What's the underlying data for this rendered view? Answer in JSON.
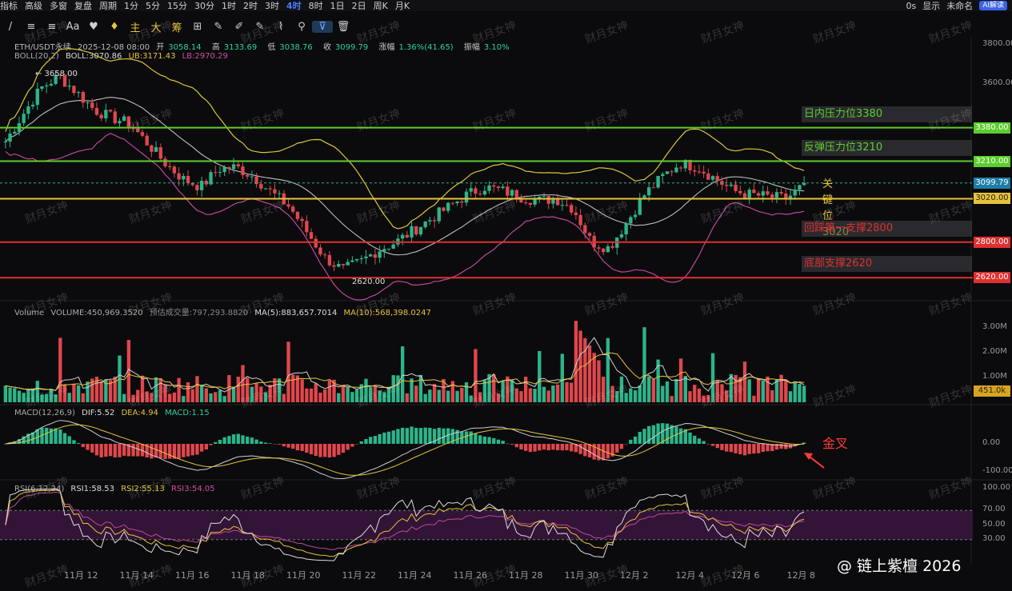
{
  "topbar": {
    "items": [
      "指标",
      "高级",
      "多窗",
      "复盘",
      "周期",
      "1分",
      "5分",
      "15分",
      "30分",
      "1时",
      "2时",
      "3时",
      "4时",
      "8时",
      "1日",
      "2日",
      "周K",
      "月K"
    ],
    "active": "4时",
    "right": [
      "0s",
      "显示",
      "未命名",
      "AI解读"
    ]
  },
  "toolbar": {
    "items": [
      "/",
      "≡",
      "≡",
      "Aa",
      "♥",
      "♦",
      "主",
      "大",
      "筹",
      "⊞",
      "✎",
      "✐",
      "✎",
      "⌇",
      "⚲",
      "⊽",
      "🗑"
    ]
  },
  "header": {
    "symbol": "ETH/USDT永续",
    "date": "2025-12-08 08:00",
    "open_label": "开",
    "open": "3058.14",
    "high_label": "高",
    "high": "3133.69",
    "low_label": "低",
    "low": "3038.76",
    "close_label": "收",
    "close": "3099.79",
    "chg_label": "涨幅",
    "chg": "1.36%(41.65)",
    "amp_label": "振幅",
    "amp": "3.10%"
  },
  "boll": {
    "name": "BOLL(20,2)",
    "mid": "BOLL:3070.86",
    "ub": "UB:3171.43",
    "lb": "LB:2970.29"
  },
  "volume": {
    "name": "Volume",
    "vol": "VOLUME:450,969.3520",
    "est": "预估成交量:797,293.8820",
    "ma5": "MA(5):883,657.7014",
    "ma10": "MA(10):568,398.0247"
  },
  "macd": {
    "name": "MACD(12,26,9)",
    "dif": "DIF:5.52",
    "dea": "DEA:4.94",
    "macd": "MACD:1.15"
  },
  "rsi": {
    "name": "RSI(6,12,24)",
    "rsi1": "RSI1:58.53",
    "rsi2": "RSI2:55.13",
    "rsi3": "RSI3:54.05"
  },
  "levels": [
    {
      "label": "日内压力位3380",
      "price": 3380,
      "tag": "3380.00",
      "color": "#5ccd2e"
    },
    {
      "label": "反弹压力位3210",
      "price": 3210,
      "tag": "3210.00",
      "color": "#5ccd2e"
    },
    {
      "label": "关键位3020",
      "price": 3020,
      "tag": "3020.00",
      "color": "#e8c23a"
    },
    {
      "label": "回踩第一支撑2800",
      "price": 2800,
      "tag": "2800.00",
      "color": "#e03030"
    },
    {
      "label": "底部支撑2620",
      "price": 2620,
      "tag": "2620.00",
      "color": "#e03030"
    }
  ],
  "current_price": "3099.79",
  "price_axis": [
    "3800.00",
    "3600.00",
    "3380.00",
    "3210.00",
    "3020.00",
    "2800.00",
    "2620.00"
  ],
  "vol_axis": [
    "3.00M",
    "2.00M",
    "1.00M"
  ],
  "vol_current": "451.0k",
  "macd_axis": [
    "0.00",
    "-100.00"
  ],
  "rsi_axis": [
    "100.00",
    "70.00",
    "50.00",
    "30.00"
  ],
  "x_labels": [
    "11月 12",
    "11月 14",
    "11月 16",
    "11月 18",
    "11月 20",
    "11月 22",
    "11月 24",
    "11月 26",
    "11月 28",
    "11月 30",
    "12月 2",
    "12月 4",
    "12月 6",
    "12月 8"
  ],
  "high_mark": "3658.00",
  "low_mark": "2620.00",
  "annotation": "金叉",
  "brand": "@ 链上紫檀 2026",
  "watermark": "财月女神",
  "chart_data": {
    "type": "candlestick",
    "interval": "4h",
    "x_range": [
      "2025-11-11",
      "2025-12-08"
    ],
    "price_range": [
      2560,
      3840
    ],
    "key_levels": [
      3380,
      3210,
      3020,
      2800,
      2620
    ],
    "last_close": 3099.79,
    "high": 3658.0,
    "low": 2620.0,
    "close_path": [
      3310,
      3450,
      3580,
      3640,
      3560,
      3470,
      3430,
      3400,
      3300,
      3200,
      3120,
      3080,
      3170,
      3180,
      3130,
      3050,
      2980,
      2850,
      2720,
      2660,
      2700,
      2760,
      2800,
      2860,
      2920,
      2980,
      3040,
      3080,
      3060,
      3030,
      3010,
      3020,
      2970,
      2800,
      2770,
      2900,
      3040,
      3130,
      3200,
      3180,
      3120,
      3060,
      3040,
      3030,
      3020,
      3090
    ],
    "volume_unit": "M",
    "volume_range": [
      0,
      3.5
    ],
    "rsi_range": [
      0,
      100
    ],
    "rsi_bands": [
      30,
      70
    ]
  }
}
